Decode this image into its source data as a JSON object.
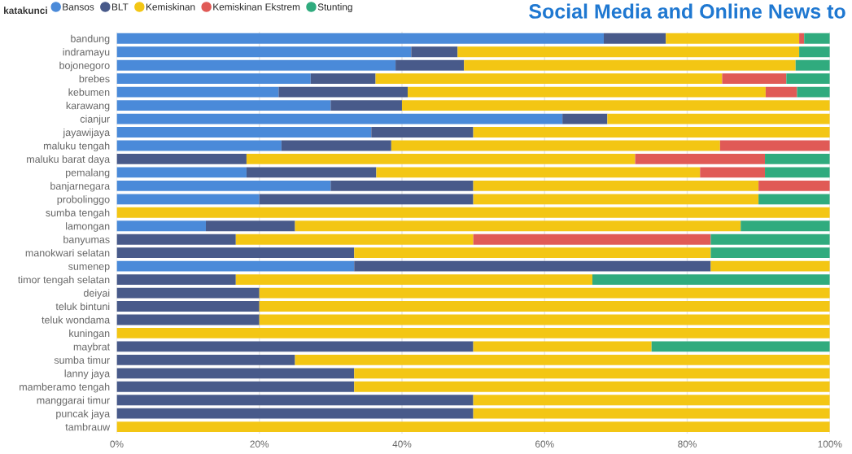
{
  "chart_data": {
    "type": "bar",
    "orientation": "horizontal",
    "stacked": true,
    "title": "Social Media and Online News to",
    "legend_title": "katakunci",
    "categories": [
      "bandung",
      "indramayu",
      "bojonegoro",
      "brebes",
      "kebumen",
      "karawang",
      "cianjur",
      "jayawijaya",
      "maluku tengah",
      "maluku barat daya",
      "pemalang",
      "banjarnegara",
      "probolinggo",
      "sumba tengah",
      "lamongan",
      "banyumas",
      "manokwari selatan",
      "sumenep",
      "timor tengah selatan",
      "deiyai",
      "teluk bintuni",
      "teluk wondama",
      "kuningan",
      "maybrat",
      "sumba timur",
      "lanny jaya",
      "mamberamo tengah",
      "manggarai timur",
      "puncak jaya",
      "tambrauw"
    ],
    "series": [
      {
        "name": "Bansos",
        "color": "#4a8ad9",
        "values": [
          68.3,
          41.3,
          39.1,
          27.2,
          22.7,
          30,
          62.5,
          35.7,
          23.1,
          null,
          18.2,
          30,
          20,
          null,
          12.5,
          null,
          null,
          33.3,
          null,
          null,
          null,
          null,
          null,
          null,
          null,
          null,
          null,
          null,
          null,
          null
        ]
      },
      {
        "name": "BLT",
        "color": "#485a8a",
        "values": [
          8.7,
          6.5,
          9.6,
          9.1,
          18.1,
          10,
          6.3,
          14.3,
          15.4,
          18.2,
          18.2,
          20,
          30,
          null,
          12.5,
          16.7,
          33.3,
          50,
          16.7,
          20,
          20,
          20,
          null,
          50,
          25,
          33.3,
          33.3,
          50,
          50,
          null
        ]
      },
      {
        "name": "Kemiskinan",
        "color": "#f3c614",
        "values": [
          18.7,
          47.9,
          46.5,
          48.6,
          50.2,
          60,
          31.2,
          50,
          46.1,
          54.5,
          45.4,
          40,
          40,
          100,
          62.5,
          33.3,
          50,
          16.7,
          50,
          80,
          80,
          80,
          100,
          25,
          75,
          66.7,
          66.7,
          50,
          50,
          100
        ]
      },
      {
        "name": "Kemiskinan Ekstrem",
        "color": "#e05a56",
        "values": [
          0.7,
          null,
          null,
          9.0,
          4.4,
          null,
          null,
          null,
          15.4,
          18.2,
          9.1,
          10,
          null,
          null,
          null,
          33.3,
          null,
          null,
          null,
          null,
          null,
          null,
          null,
          null,
          null,
          null,
          null,
          null,
          null,
          null
        ]
      },
      {
        "name": "Stunting",
        "color": "#30ab7e",
        "values": [
          3.6,
          4.3,
          4.8,
          6.1,
          4.6,
          null,
          null,
          null,
          null,
          9.1,
          9.1,
          null,
          10,
          null,
          12.5,
          16.7,
          16.7,
          null,
          33.3,
          null,
          null,
          null,
          null,
          25,
          null,
          null,
          null,
          null,
          null,
          null
        ]
      }
    ],
    "xlim": [
      0,
      100
    ],
    "xticks": [
      {
        "value": 0,
        "label": "0%"
      },
      {
        "value": 20,
        "label": "20%"
      },
      {
        "value": 40,
        "label": "40%"
      },
      {
        "value": 60,
        "label": "60%"
      },
      {
        "value": 80,
        "label": "80%"
      },
      {
        "value": 100,
        "label": "100%"
      }
    ],
    "grid": "x",
    "legend": "top left"
  }
}
